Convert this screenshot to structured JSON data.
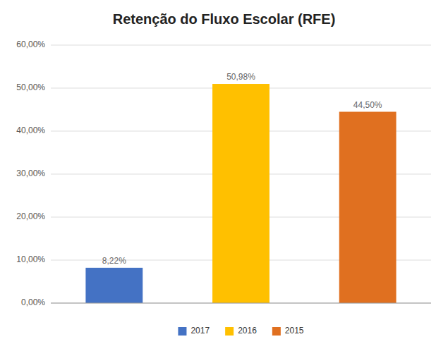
{
  "chart_data": {
    "type": "bar",
    "title": "Retenção do Fluxo Escolar (RFE)",
    "categories": [
      "2017",
      "2016",
      "2015"
    ],
    "values": [
      0.0822,
      0.5098,
      0.445
    ],
    "value_labels": [
      "8,22%",
      "50,98%",
      "44,50%"
    ],
    "colors": [
      "#4472C4",
      "#FFC000",
      "#E07020"
    ],
    "ylim": [
      0,
      0.6
    ],
    "yticks": [
      {
        "value": 0.0,
        "label": "0,00%"
      },
      {
        "value": 0.1,
        "label": "10,00%"
      },
      {
        "value": 0.2,
        "label": "20,00%"
      },
      {
        "value": 0.3,
        "label": "30,00%"
      },
      {
        "value": 0.4,
        "label": "40,00%"
      },
      {
        "value": 0.5,
        "label": "50,00%"
      },
      {
        "value": 0.6,
        "label": "60,00%"
      }
    ],
    "grid": true,
    "legend": "bottom",
    "data_labels": true,
    "tick_labels": "y"
  }
}
